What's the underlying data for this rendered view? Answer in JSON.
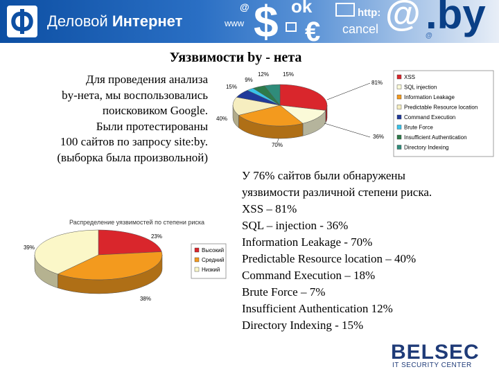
{
  "header": {
    "brand_regular": "Деловой",
    "brand_bold": "Интернет",
    "decorations": [
      "@",
      "www",
      "$",
      "ok",
      "http:",
      "@",
      "€",
      "cancel",
      "@",
      ".by"
    ]
  },
  "title": "Уязвимости by - нета",
  "intro_lines": [
    "Для проведения анализа",
    "by-нета, мы воспользовались",
    "поисковиком Google.",
    "Были протестированы",
    "100 сайтов по запросу site:by.",
    "(выборка была произвольной)"
  ],
  "findings_lines": [
    "У 76% сайтов были обнаружены",
    "уязвимости различной степени риска.",
    "XSS – 81%",
    "SQL – injection  - 36%",
    "Information Leakage  - 70%",
    "Predictable Resource location – 40%",
    "Command Execution – 18%",
    "Brute Force – 7%",
    "Insufficient Authentication 12%",
    "Directory Indexing  - 15%"
  ],
  "logo": {
    "name": "BELSEC",
    "subtitle": "IT SECURITY CENTER"
  },
  "chart_data": [
    {
      "type": "pie",
      "title": "",
      "legend_position": "right",
      "categories": [
        "XSS",
        "SQL injection",
        "Information Leakage",
        "Predictable Resource location",
        "Command Execution",
        "Brute Force",
        "Insufficient Authentication",
        "Directory Indexing"
      ],
      "values": [
        81,
        36,
        70,
        40,
        18,
        7,
        12,
        15
      ],
      "labels": [
        "81%",
        "36%",
        "70%",
        "40%",
        "",
        "",
        "12%",
        "15%"
      ],
      "extra_labels": [
        "9%"
      ],
      "colors": [
        "#d9262c",
        "#fbfad8",
        "#f39a1e",
        "#f6eec0",
        "#1f3a9a",
        "#38c2e8",
        "#2d7a4a",
        "#2f8c7a"
      ]
    },
    {
      "type": "pie",
      "title": "Распределение уязвимостей по степени риска",
      "legend_position": "right",
      "categories": [
        "Высокий",
        "Средний",
        "Низкий"
      ],
      "values": [
        23,
        38,
        39
      ],
      "labels": [
        "23%",
        "38%",
        "39%"
      ],
      "colors": [
        "#d9262c",
        "#f39a1e",
        "#fbf7c8"
      ]
    }
  ]
}
